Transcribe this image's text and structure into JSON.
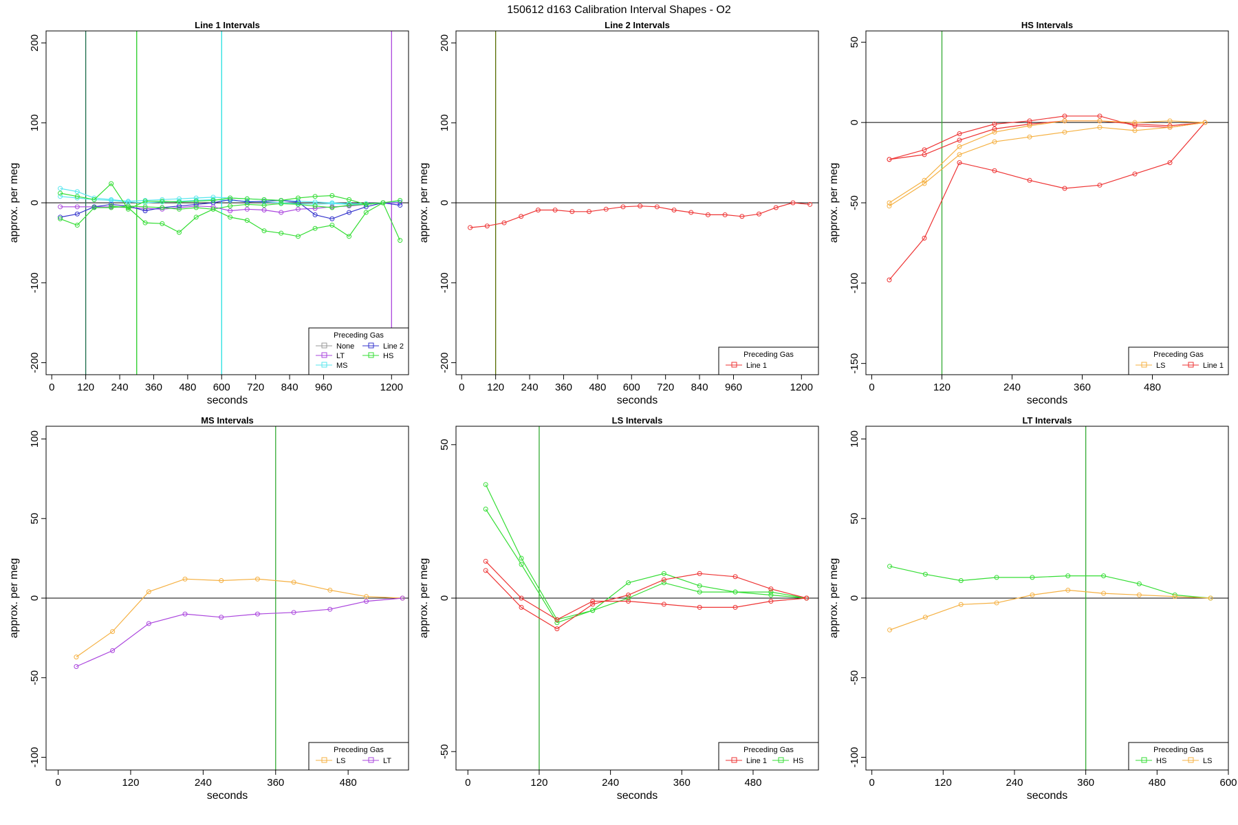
{
  "figure": {
    "title": "150612   d163   Calibration Interval Shapes - O2"
  },
  "chart_data": [
    {
      "type": "line",
      "title": "Line 1 Intervals",
      "xlabel": "seconds",
      "ylabel": "approx. per meg",
      "xlim": [
        -20,
        1260
      ],
      "ylim": [
        -215,
        215
      ],
      "xticks": [
        0,
        120,
        240,
        360,
        480,
        600,
        720,
        840,
        960,
        1200
      ],
      "yticks": [
        -200,
        -100,
        0,
        100,
        200
      ],
      "hlines": [
        0
      ],
      "vlines": [
        {
          "x": 120,
          "color": "#1a6b4a"
        },
        {
          "x": 300,
          "color": "#22cc22"
        },
        {
          "x": 600,
          "color": "#22e0e0"
        },
        {
          "x": 1200,
          "color": "#aa44dd"
        }
      ],
      "legend": {
        "title": "Preceding Gas",
        "position": "bottom-right",
        "columns": 2,
        "entries": [
          {
            "label": "None",
            "color": "#999999"
          },
          {
            "label": "Line 2",
            "color": "#3333cc"
          },
          {
            "label": "LT",
            "color": "#aa44dd"
          },
          {
            "label": "HS",
            "color": "#33dd33"
          },
          {
            "label": "MS",
            "color": "#55e6ee"
          }
        ]
      },
      "series": [
        {
          "color": "#55e6ee",
          "x": [
            30,
            90,
            150,
            210,
            270,
            330,
            390,
            450,
            510,
            570,
            630,
            690,
            750,
            810,
            870,
            930,
            990,
            1050,
            1110,
            1170,
            1230
          ],
          "y": [
            18,
            14,
            6,
            4,
            2,
            3,
            4,
            5,
            6,
            7,
            6,
            5,
            4,
            3,
            2,
            1,
            0,
            -1,
            -1,
            0,
            1
          ]
        },
        {
          "color": "#55e6ee",
          "x": [
            30,
            90,
            150,
            210,
            270,
            330,
            390,
            450,
            510,
            570,
            630,
            690,
            750,
            810,
            870,
            930,
            990,
            1050,
            1110,
            1170,
            1230
          ],
          "y": [
            8,
            6,
            4,
            3,
            1,
            0,
            1,
            2,
            3,
            4,
            3,
            2,
            1,
            0,
            -1,
            -2,
            -1,
            -2,
            -2,
            0,
            0
          ]
        },
        {
          "color": "#aa44dd",
          "x": [
            30,
            90,
            150,
            210,
            270,
            330,
            390,
            450,
            510,
            570,
            630,
            690,
            750,
            810,
            870,
            930,
            990,
            1050,
            1110,
            1170,
            1230
          ],
          "y": [
            -5,
            -5,
            -5,
            -5,
            -6,
            -7,
            -8,
            -6,
            -4,
            -5,
            -10,
            -8,
            -9,
            -12,
            -8,
            -7,
            -5,
            -4,
            -2,
            0,
            0
          ]
        },
        {
          "color": "#3333cc",
          "x": [
            30,
            90,
            150,
            210,
            270,
            330,
            390,
            450,
            510,
            570,
            630,
            690,
            750,
            810,
            870,
            930,
            990,
            1050,
            1110,
            1170,
            1230
          ],
          "y": [
            -18,
            -14,
            -5,
            -2,
            -4,
            -10,
            -6,
            -4,
            -2,
            0,
            4,
            1,
            2,
            3,
            1,
            -15,
            -20,
            -12,
            -5,
            0,
            -3
          ]
        },
        {
          "color": "#33dd33",
          "x": [
            30,
            90,
            150,
            210,
            270,
            330,
            390,
            450,
            510,
            570,
            630,
            690,
            750,
            810,
            870,
            930,
            990,
            1050,
            1110,
            1170,
            1230
          ],
          "y": [
            12,
            8,
            4,
            24,
            -8,
            2,
            2,
            1,
            2,
            3,
            6,
            5,
            4,
            3,
            6,
            8,
            9,
            4,
            -2,
            0,
            3
          ]
        },
        {
          "color": "#33dd33",
          "x": [
            30,
            90,
            150,
            210,
            270,
            330,
            390,
            450,
            510,
            570,
            630,
            690,
            750,
            810,
            870,
            930,
            990,
            1050,
            1110,
            1170,
            1230
          ],
          "y": [
            -20,
            -28,
            -6,
            -6,
            -4,
            -5,
            -6,
            -8,
            -6,
            -8,
            -4,
            -2,
            -3,
            -1,
            -2,
            -4,
            -6,
            -3,
            -2,
            0,
            -47
          ]
        },
        {
          "color": "#33dd33",
          "x": [
            210,
            270,
            330,
            390,
            450,
            510,
            570,
            630,
            690,
            750,
            810,
            870,
            930,
            990,
            1050,
            1110,
            1170
          ],
          "y": [
            -4,
            -6,
            -25,
            -26,
            -37,
            -18,
            -8,
            -18,
            -22,
            -35,
            -38,
            -42,
            -32,
            -28,
            -42,
            -12,
            0
          ]
        }
      ]
    },
    {
      "type": "line",
      "title": "Line 2 Intervals",
      "xlabel": "seconds",
      "ylabel": "approx. per meg",
      "xlim": [
        -20,
        1260
      ],
      "ylim": [
        -215,
        215
      ],
      "xticks": [
        0,
        120,
        240,
        360,
        480,
        600,
        720,
        840,
        960,
        1200
      ],
      "yticks": [
        -200,
        -100,
        0,
        100,
        200
      ],
      "hlines": [
        0
      ],
      "vlines": [
        {
          "x": 120,
          "color": "#556b00"
        }
      ],
      "legend": {
        "title": "Preceding Gas",
        "position": "bottom-right",
        "columns": 1,
        "entries": [
          {
            "label": "Line 1",
            "color": "#ee3333"
          }
        ]
      },
      "series": [
        {
          "color": "#ee3333",
          "x": [
            30,
            90,
            150,
            210,
            270,
            330,
            390,
            450,
            510,
            570,
            630,
            690,
            750,
            810,
            870,
            930,
            990,
            1050,
            1110,
            1170,
            1230
          ],
          "y": [
            -31,
            -29,
            -25,
            -17,
            -9,
            -9,
            -11,
            -11,
            -8,
            -5,
            -4,
            -5,
            -9,
            -12,
            -15,
            -15,
            -17,
            -14,
            -6,
            0,
            -2
          ]
        }
      ]
    },
    {
      "type": "line",
      "title": "HS Intervals",
      "xlabel": "seconds",
      "ylabel": "approx. per meg",
      "xlim": [
        -10,
        610
      ],
      "ylim": [
        -157,
        57
      ],
      "xticks": [
        0,
        120,
        240,
        360,
        480
      ],
      "yticks": [
        -150,
        -100,
        -50,
        0,
        50
      ],
      "hlines": [
        0
      ],
      "vlines": [
        {
          "x": 120,
          "color": "#33aa33"
        }
      ],
      "legend": {
        "title": "Preceding Gas",
        "position": "bottom-right",
        "columns": 2,
        "entries": [
          {
            "label": "LS",
            "color": "#f5b041"
          },
          {
            "label": "Line 1",
            "color": "#ee3333"
          }
        ]
      },
      "series": [
        {
          "color": "#ee3333",
          "x": [
            30,
            90,
            150,
            210,
            270,
            330,
            390,
            450,
            510,
            570
          ],
          "y": [
            -98,
            -72,
            -25,
            -30,
            -36,
            -41,
            -39,
            -32,
            -25,
            0
          ]
        },
        {
          "color": "#ee3333",
          "x": [
            30,
            90,
            150,
            210,
            270,
            330,
            390,
            450,
            510,
            570
          ],
          "y": [
            -23,
            -17,
            -7,
            -1,
            1,
            4,
            4,
            -2,
            -3,
            0
          ]
        },
        {
          "color": "#ee3333",
          "x": [
            30,
            90,
            150,
            210,
            270,
            330,
            390,
            450,
            510,
            570
          ],
          "y": [
            -23,
            -20,
            -11,
            -4,
            -1,
            1,
            1,
            -1,
            -2,
            0
          ]
        },
        {
          "color": "#f5b041",
          "x": [
            30,
            90,
            150,
            210,
            270,
            330,
            390,
            450,
            510,
            570
          ],
          "y": [
            -50,
            -36,
            -15,
            -6,
            -2,
            1,
            1,
            0,
            1,
            0
          ]
        },
        {
          "color": "#f5b041",
          "x": [
            30,
            90,
            150,
            210,
            270,
            330,
            390,
            450,
            510,
            570
          ],
          "y": [
            -52,
            -38,
            -20,
            -12,
            -9,
            -6,
            -3,
            -5,
            -3,
            0
          ]
        }
      ]
    },
    {
      "type": "line",
      "title": "MS Intervals",
      "xlabel": "seconds",
      "ylabel": "approx. per meg",
      "xlim": [
        -20,
        580
      ],
      "ylim": [
        -108,
        108
      ],
      "xticks": [
        0,
        120,
        240,
        360,
        480
      ],
      "yticks": [
        -100,
        -50,
        0,
        50,
        100
      ],
      "hlines": [
        0
      ],
      "vlines": [
        {
          "x": 360,
          "color": "#33aa33"
        }
      ],
      "legend": {
        "title": "Preceding Gas",
        "position": "bottom-right",
        "columns": 2,
        "entries": [
          {
            "label": "LS",
            "color": "#f5b041"
          },
          {
            "label": "LT",
            "color": "#aa44dd"
          }
        ]
      },
      "series": [
        {
          "color": "#f5b041",
          "x": [
            30,
            90,
            150,
            210,
            270,
            330,
            390,
            450,
            510,
            570
          ],
          "y": [
            -37,
            -21,
            4,
            12,
            11,
            12,
            10,
            5,
            1,
            0
          ]
        },
        {
          "color": "#aa44dd",
          "x": [
            30,
            90,
            150,
            210,
            270,
            330,
            390,
            450,
            510,
            570
          ],
          "y": [
            -43,
            -33,
            -16,
            -10,
            -12,
            -10,
            -9,
            -7,
            -2,
            0
          ]
        }
      ]
    },
    {
      "type": "line",
      "title": "LS Intervals",
      "xlabel": "seconds",
      "ylabel": "approx. per meg",
      "xlim": [
        -20,
        590
      ],
      "ylim": [
        -56,
        56
      ],
      "xticks": [
        0,
        120,
        240,
        360,
        480
      ],
      "yticks": [
        -50,
        0,
        50,
        100
      ],
      "hlines": [
        0
      ],
      "vlines": [
        {
          "x": 120,
          "color": "#33aa33"
        }
      ],
      "legend": {
        "title": "Preceding Gas",
        "position": "bottom-right",
        "columns": 2,
        "entries": [
          {
            "label": "Line 1",
            "color": "#ee3333"
          },
          {
            "label": "HS",
            "color": "#33dd33"
          }
        ]
      },
      "series": [
        {
          "color": "#33dd33",
          "x": [
            30,
            90,
            150,
            210,
            270,
            330,
            390,
            450,
            510,
            570
          ],
          "y": [
            37,
            13,
            -7,
            -4,
            5,
            8,
            4,
            2,
            1,
            0
          ]
        },
        {
          "color": "#33dd33",
          "x": [
            30,
            90,
            150,
            210,
            270,
            330,
            390,
            450,
            510,
            570
          ],
          "y": [
            29,
            11,
            -8,
            -4,
            0,
            5,
            2,
            2,
            2,
            0
          ]
        },
        {
          "color": "#ee3333",
          "x": [
            30,
            90,
            150,
            210,
            270,
            330,
            390,
            450,
            510,
            570
          ],
          "y": [
            12,
            0,
            -7,
            -1,
            -1,
            -2,
            -3,
            -3,
            -1,
            0
          ]
        },
        {
          "color": "#ee3333",
          "x": [
            30,
            90,
            150,
            210,
            270,
            330,
            390,
            450,
            510,
            570
          ],
          "y": [
            9,
            -3,
            -10,
            -2,
            1,
            6,
            8,
            7,
            3,
            0
          ]
        }
      ]
    },
    {
      "type": "line",
      "title": "LT Intervals",
      "xlabel": "seconds",
      "ylabel": "approx. per meg",
      "xlim": [
        -10,
        600
      ],
      "ylim": [
        -108,
        108
      ],
      "xticks": [
        0,
        120,
        240,
        360,
        480,
        600
      ],
      "yticks": [
        -100,
        -50,
        0,
        50,
        100
      ],
      "hlines": [
        0
      ],
      "vlines": [
        {
          "x": 360,
          "color": "#33aa33"
        }
      ],
      "legend": {
        "title": "Preceding Gas",
        "position": "bottom-right",
        "columns": 2,
        "entries": [
          {
            "label": "HS",
            "color": "#33dd33"
          },
          {
            "label": "LS",
            "color": "#f5b041"
          }
        ]
      },
      "series": [
        {
          "color": "#33dd33",
          "x": [
            30,
            90,
            150,
            210,
            270,
            330,
            390,
            450,
            510,
            570
          ],
          "y": [
            20,
            15,
            11,
            13,
            13,
            14,
            14,
            9,
            2,
            0
          ]
        },
        {
          "color": "#f5b041",
          "x": [
            30,
            90,
            150,
            210,
            270,
            330,
            390,
            450,
            510,
            570
          ],
          "y": [
            -20,
            -12,
            -4,
            -3,
            2,
            5,
            3,
            2,
            1,
            0
          ]
        }
      ]
    }
  ]
}
